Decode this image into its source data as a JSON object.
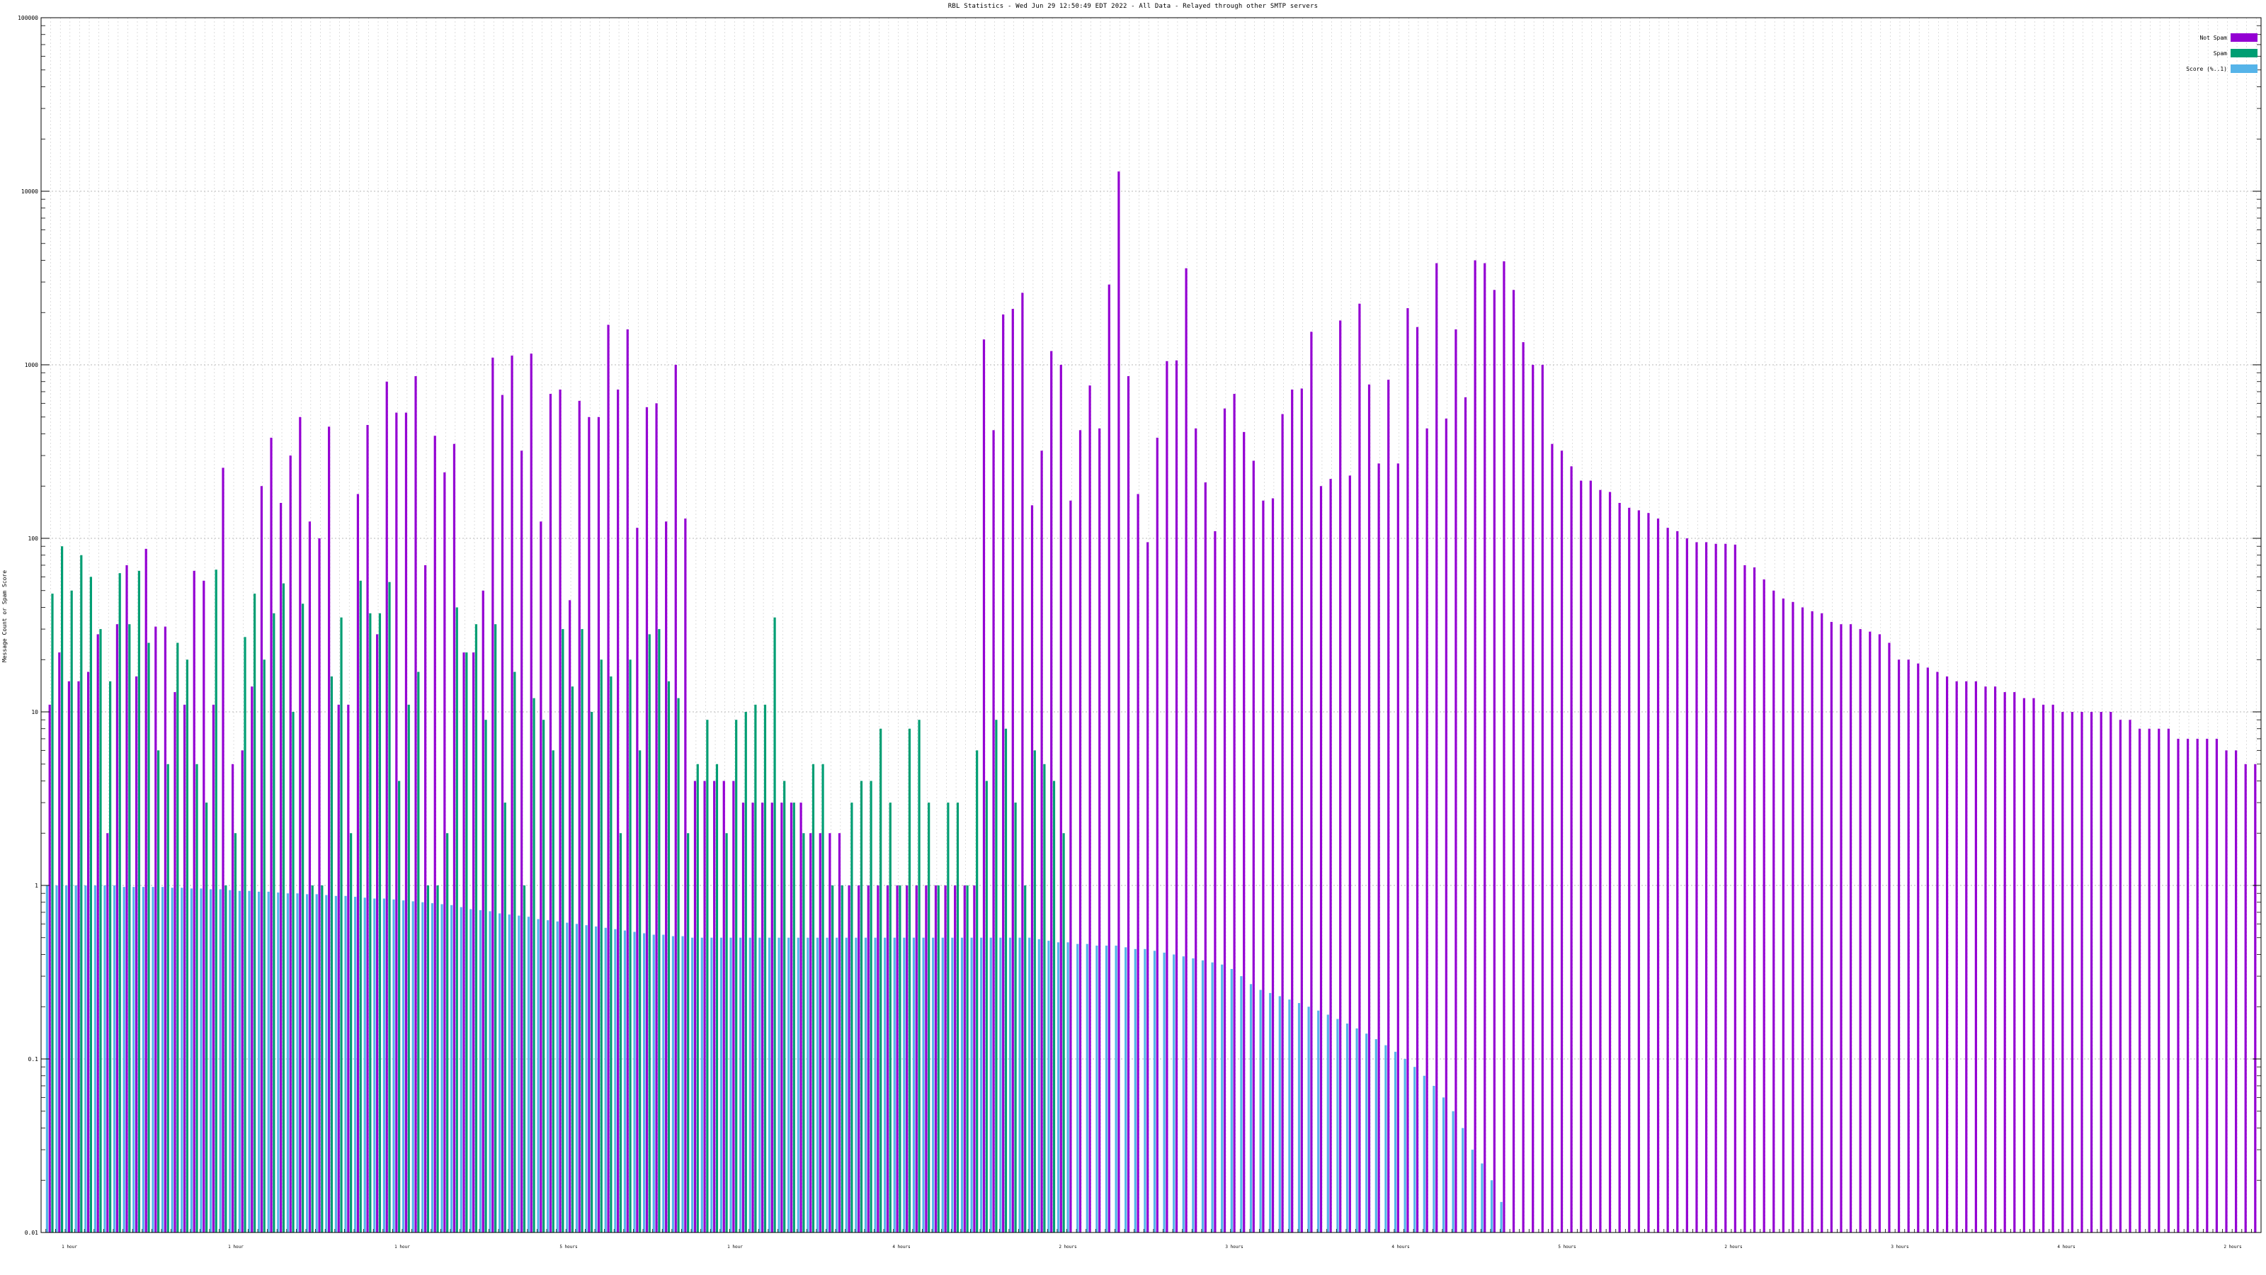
{
  "chart_data": {
    "type": "bar",
    "title": "RBL Statistics - Wed Jun 29 12:50:49 EDT 2022 - All Data - Relayed through other SMTP servers",
    "xlabel": "",
    "ylabel": "Message Count or Spam Score",
    "y_scale": "log",
    "ylim": [
      0.01,
      100000
    ],
    "y_ticks": [
      "0.01",
      "0.1",
      "1",
      "10",
      "100",
      "1000",
      "10000",
      "100000"
    ],
    "grid": true,
    "legend_position": "top-right",
    "series": [
      {
        "name": "Not Spam",
        "color": "#9400d3",
        "values": [
          11,
          22,
          15,
          15,
          17,
          28,
          2,
          32,
          70,
          16,
          87,
          31,
          31,
          13,
          11,
          65,
          57,
          11,
          255,
          5,
          6,
          14,
          200,
          380,
          160,
          300,
          500,
          125,
          100,
          440,
          11,
          11,
          180,
          450,
          28,
          800,
          530,
          530,
          860,
          70,
          390,
          240,
          350,
          22,
          22,
          50,
          1100,
          670,
          1130,
          320,
          1160,
          125,
          680,
          720,
          44,
          620,
          500,
          500,
          1700,
          720,
          1600,
          115,
          570,
          600,
          125,
          1000,
          130,
          4,
          4,
          4,
          4,
          4,
          3,
          3,
          3,
          3,
          3,
          3,
          3,
          2,
          2,
          2,
          2,
          1,
          1,
          1,
          1,
          1,
          1,
          1,
          1,
          1,
          1,
          1,
          1,
          1,
          1,
          1400,
          420,
          1950,
          2100,
          2600,
          155,
          320,
          1200,
          1000,
          165,
          420,
          760,
          430,
          2900,
          13000,
          860,
          180,
          95,
          380,
          1050,
          1060,
          3600,
          430,
          210,
          110,
          560,
          680,
          410,
          280,
          165,
          170,
          520,
          720,
          730,
          1550,
          200,
          220,
          1800,
          230,
          2250,
          770,
          270,
          820,
          270,
          2120,
          1650,
          430,
          3850,
          490,
          1600,
          650,
          4000,
          3850,
          2700,
          3950,
          2700,
          1350,
          1000,
          1000,
          350,
          320,
          260,
          215,
          215,
          190,
          185,
          160,
          150,
          145,
          140,
          130,
          115,
          110,
          100,
          95,
          95,
          93,
          93,
          92,
          70,
          68,
          58,
          50,
          45,
          43,
          40,
          38,
          37,
          33,
          32,
          32,
          30,
          29,
          28,
          25,
          20,
          20,
          19,
          18,
          17,
          16,
          15,
          15,
          15,
          14,
          14,
          13,
          13,
          12,
          12,
          11,
          11,
          10,
          10,
          10,
          10,
          10,
          10,
          9,
          9,
          8,
          8,
          8,
          8,
          7,
          7,
          7,
          7,
          7,
          6,
          6,
          5,
          5
        ]
      },
      {
        "name": "Spam",
        "color": "#009e73",
        "values": [
          48,
          90,
          50,
          80,
          60,
          30,
          15,
          63,
          32,
          65,
          25,
          6,
          5,
          25,
          20,
          5,
          3,
          66,
          1,
          2,
          27,
          48,
          20,
          37,
          55,
          10,
          42,
          1,
          1,
          16,
          35,
          2,
          57,
          37,
          37,
          56,
          4,
          11,
          17,
          1,
          1,
          2,
          40,
          22,
          32,
          9,
          32,
          3,
          17,
          1,
          12,
          9,
          6,
          30,
          14,
          30,
          10,
          20,
          16,
          2,
          20,
          6,
          28,
          30,
          15,
          12,
          2,
          5,
          9,
          5,
          2,
          9,
          10,
          11,
          11,
          35,
          4,
          3,
          2,
          5,
          5,
          1,
          1,
          3,
          4,
          4,
          8,
          3,
          1,
          8,
          9,
          3,
          1,
          3,
          3,
          1,
          6,
          4,
          9,
          8,
          3,
          1,
          6,
          5,
          4,
          2
        ]
      },
      {
        "name": "Score (%..1)",
        "color": "#56b4e9",
        "values": [
          1,
          1,
          1,
          1,
          1,
          1,
          1,
          1,
          0.98,
          0.98,
          0.98,
          0.98,
          0.98,
          0.97,
          0.97,
          0.96,
          0.96,
          0.95,
          0.95,
          0.94,
          0.93,
          0.93,
          0.92,
          0.92,
          0.91,
          0.9,
          0.9,
          0.89,
          0.89,
          0.88,
          0.87,
          0.87,
          0.86,
          0.85,
          0.84,
          0.84,
          0.83,
          0.82,
          0.81,
          0.8,
          0.79,
          0.78,
          0.77,
          0.75,
          0.73,
          0.72,
          0.71,
          0.69,
          0.68,
          0.67,
          0.66,
          0.64,
          0.63,
          0.62,
          0.61,
          0.6,
          0.59,
          0.58,
          0.57,
          0.56,
          0.55,
          0.54,
          0.53,
          0.52,
          0.52,
          0.51,
          0.51,
          0.5,
          0.5,
          0.5,
          0.5,
          0.5,
          0.5,
          0.5,
          0.5,
          0.5,
          0.5,
          0.5,
          0.5,
          0.5,
          0.5,
          0.5,
          0.5,
          0.5,
          0.5,
          0.5,
          0.5,
          0.5,
          0.5,
          0.5,
          0.5,
          0.5,
          0.5,
          0.5,
          0.5,
          0.5,
          0.5,
          0.5,
          0.5,
          0.5,
          0.5,
          0.5,
          0.5,
          0.49,
          0.48,
          0.47,
          0.47,
          0.46,
          0.46,
          0.45,
          0.45,
          0.45,
          0.44,
          0.43,
          0.43,
          0.42,
          0.41,
          0.4,
          0.39,
          0.38,
          0.37,
          0.36,
          0.35,
          0.33,
          0.3,
          0.27,
          0.25,
          0.24,
          0.23,
          0.22,
          0.21,
          0.2,
          0.19,
          0.18,
          0.17,
          0.16,
          0.15,
          0.14,
          0.13,
          0.12,
          0.11,
          0.1,
          0.09,
          0.08,
          0.07,
          0.06,
          0.05,
          0.04,
          0.03,
          0.025,
          0.02,
          0.015
        ]
      }
    ],
    "category_label_samples": [
      "1 hour",
      "1 hour",
      "1 hour",
      "5 hours",
      "1 hour",
      "4 hours",
      "2 hours",
      "3 hours",
      "4 hours",
      "5 hours",
      "2 hours",
      "3 hours",
      "4 hours",
      "2 hours"
    ]
  }
}
